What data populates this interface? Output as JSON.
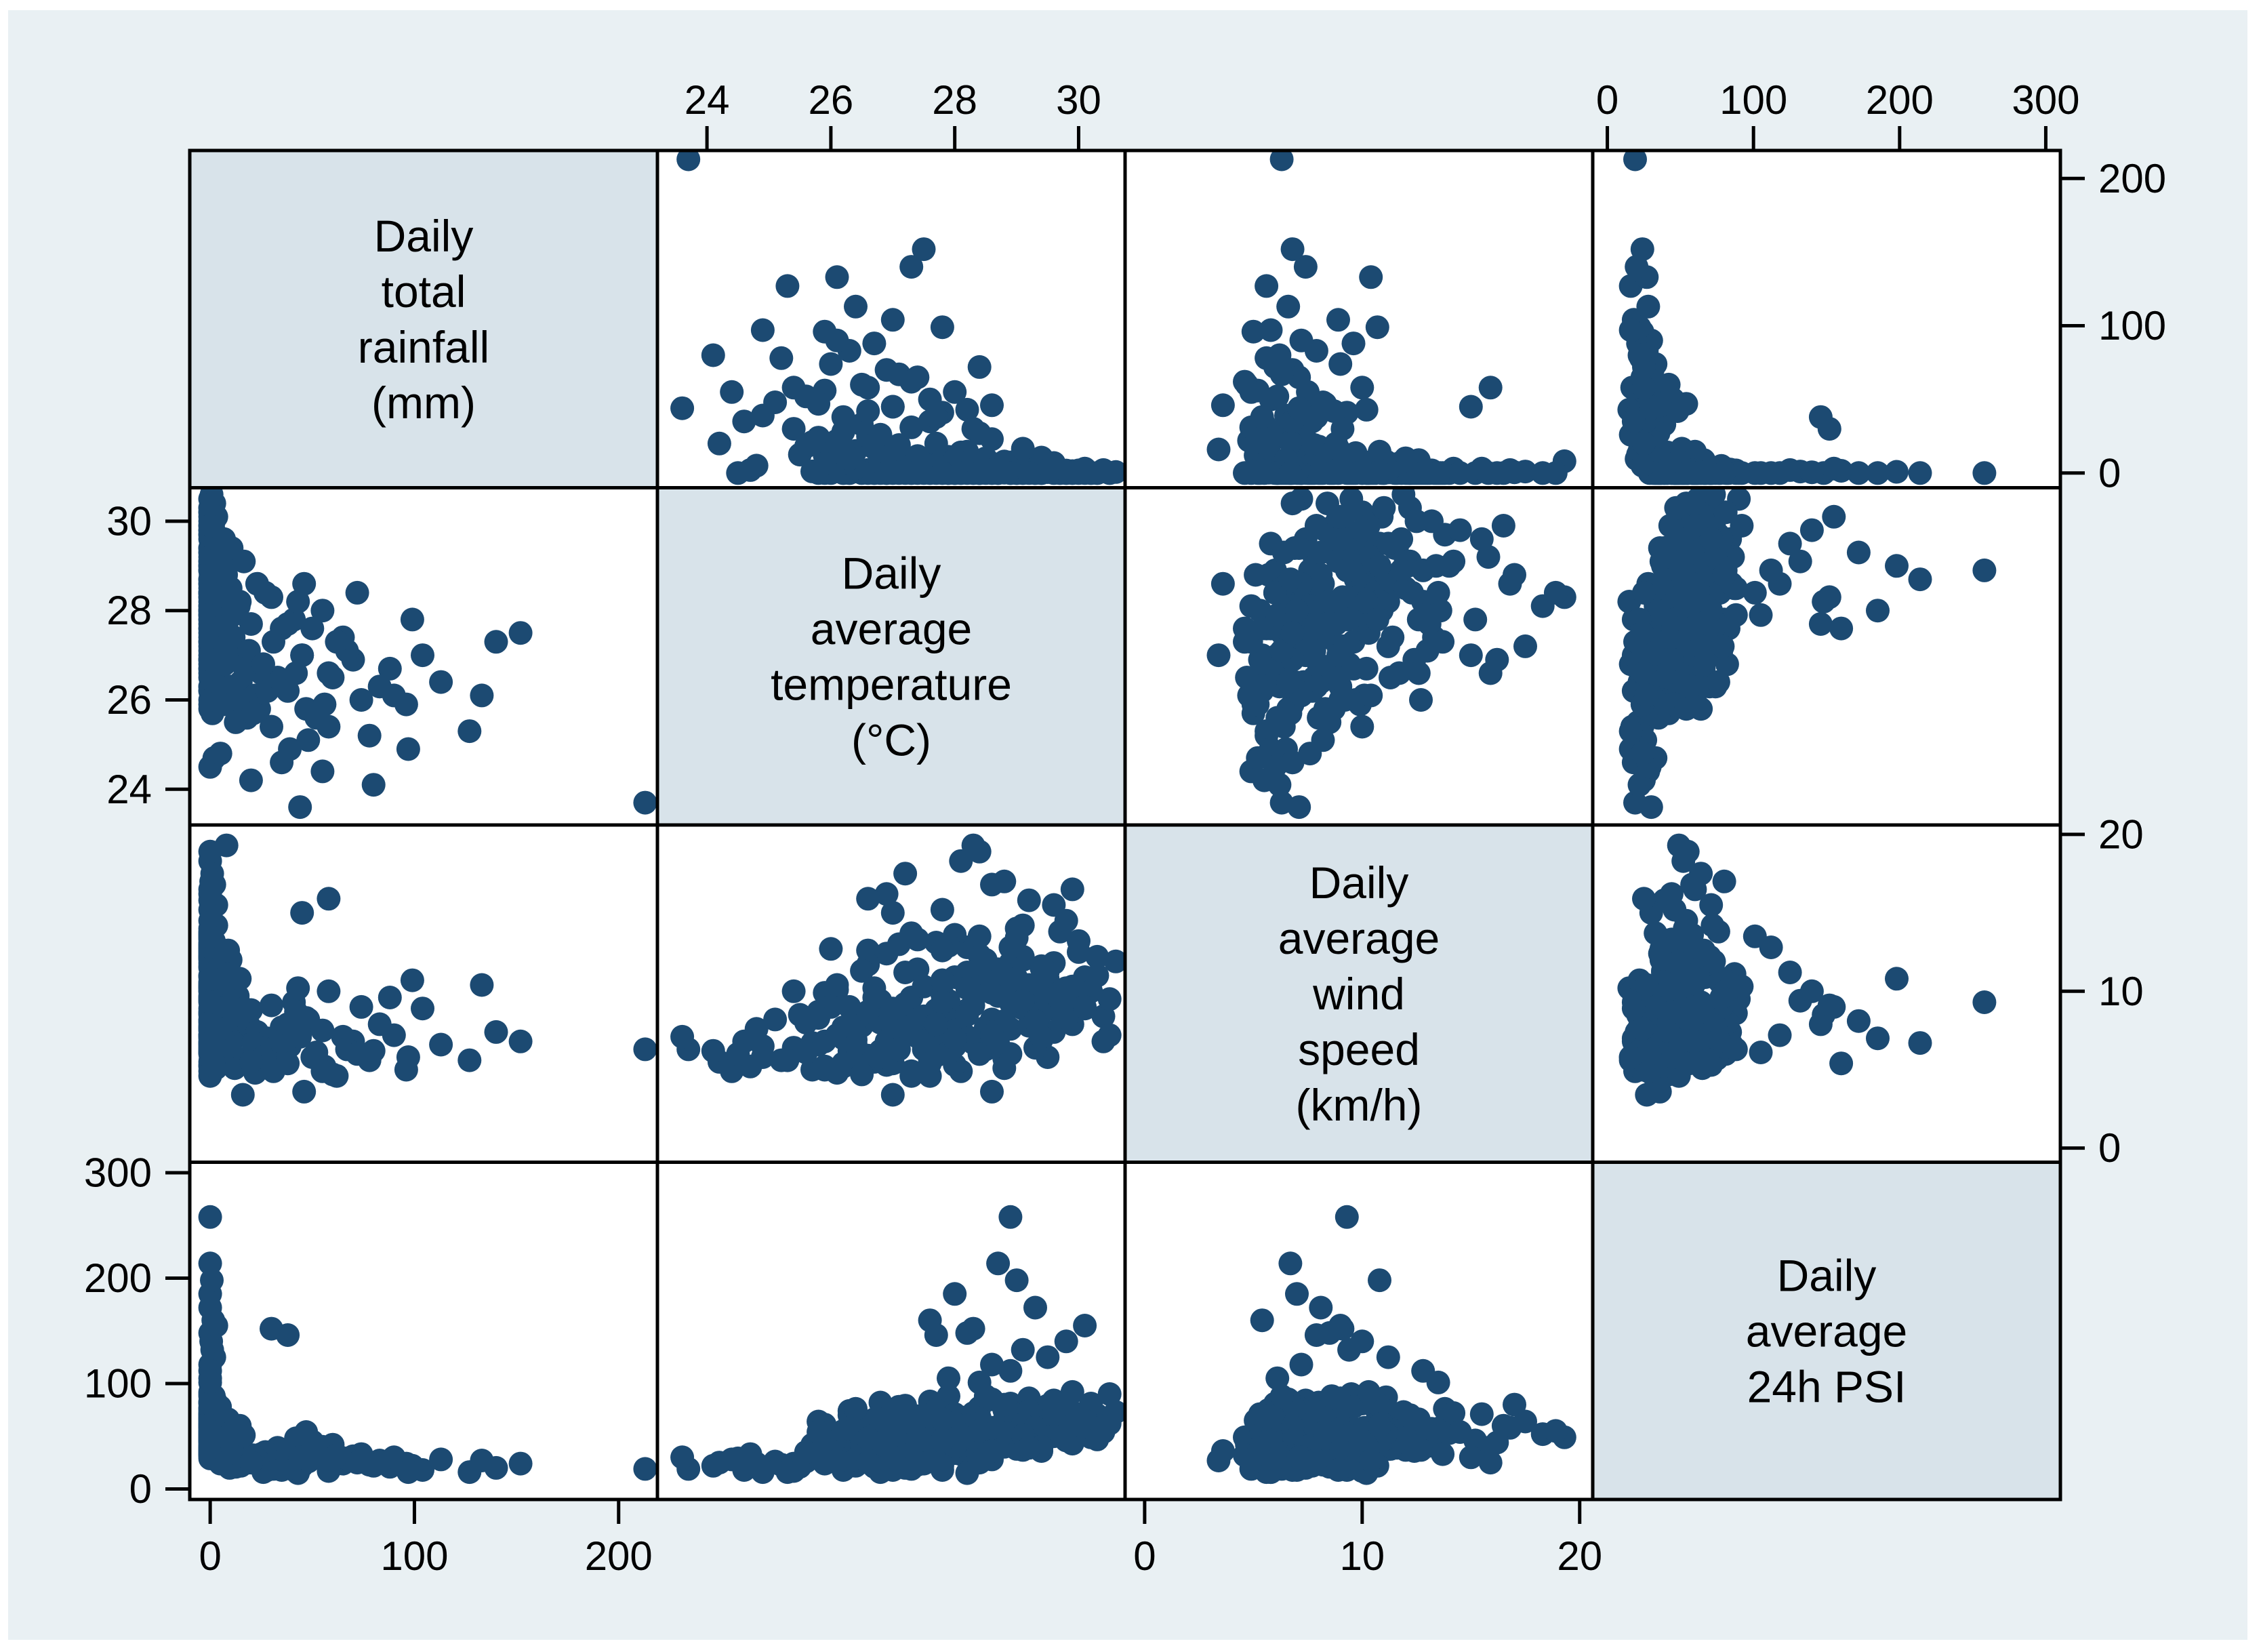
{
  "figure": {
    "background": "#ffffff",
    "canvas_color": "#e9f0f3",
    "diagonal_cell_color": "#d8e3ea",
    "panel_color": "#ffffff",
    "border_color": "#000000",
    "text_color": "#000000"
  },
  "chart_data": {
    "type": "scatter",
    "subtype": "scatter_matrix",
    "title": "",
    "legend": "none",
    "grid": false,
    "marker": {
      "shape": "circle",
      "color": "#1c4a72",
      "radius_px": 17.5
    },
    "axes": {
      "top": [
        1,
        3
      ],
      "bottom": [
        0,
        2
      ],
      "left": [
        1,
        3
      ],
      "right": [
        0,
        2
      ]
    },
    "variables": [
      {
        "key": "rainfall",
        "label": "Daily total rainfall (mm)",
        "label_lines": [
          "Daily",
          "total",
          "rainfall",
          "(mm)"
        ],
        "axis_range": [
          -10,
          219
        ],
        "ticks": [
          0,
          100,
          200
        ]
      },
      {
        "key": "temperature",
        "label": "Daily average temperature (°C)",
        "label_lines": [
          "Daily",
          "average",
          "temperature",
          "(°C)"
        ],
        "axis_range": [
          23.2,
          30.75
        ],
        "ticks": [
          24,
          26,
          28,
          30
        ]
      },
      {
        "key": "windspeed",
        "label": "Daily average wind speed (km/h)",
        "label_lines": [
          "Daily",
          "average",
          "wind",
          "speed",
          "(km/h)"
        ],
        "axis_range": [
          -0.9,
          20.6
        ],
        "ticks": [
          0,
          10,
          20
        ]
      },
      {
        "key": "psi",
        "label": "Daily average 24h PSI",
        "label_lines": [
          "Daily",
          "average",
          "24h PSI"
        ],
        "axis_range": [
          -10,
          310
        ],
        "ticks": [
          0,
          100,
          200,
          300
        ]
      }
    ],
    "records_format": [
      "rainfall_mm",
      "temperature_c",
      "windspeed_kmh",
      "psi_24h"
    ],
    "records": [
      [
        0,
        26.2,
        5.2,
        32
      ],
      [
        0,
        26.5,
        7.8,
        58
      ],
      [
        1.2,
        26.8,
        9.4,
        44
      ],
      [
        0,
        27,
        6.1,
        71
      ],
      [
        0.4,
        27.2,
        11.2,
        38
      ],
      [
        2,
        27.4,
        8.3,
        62
      ],
      [
        0,
        27.6,
        4.6,
        49
      ],
      [
        0.8,
        27.8,
        10.7,
        80
      ],
      [
        0,
        28,
        7.2,
        35
      ],
      [
        1.5,
        28.2,
        12.8,
        55
      ],
      [
        0,
        28.4,
        6.6,
        68
      ],
      [
        3,
        28.6,
        9.9,
        42
      ],
      [
        0.2,
        28.8,
        5.7,
        75
      ],
      [
        0,
        29,
        13.4,
        51
      ],
      [
        1,
        29.2,
        8.8,
        63
      ],
      [
        0,
        29.4,
        11.6,
        39
      ],
      [
        2.4,
        29.6,
        7.4,
        84
      ],
      [
        0,
        29.8,
        10.2,
        46
      ],
      [
        0.6,
        30,
        9.1,
        57
      ],
      [
        0,
        30.3,
        12.2,
        70
      ],
      [
        1,
        26.4,
        8.1,
        47
      ],
      [
        0,
        26.7,
        5.5,
        66
      ],
      [
        0,
        26.9,
        12.4,
        36
      ],
      [
        2.6,
        27.1,
        7,
        78
      ],
      [
        0,
        27.3,
        9.6,
        52
      ],
      [
        0.3,
        27.5,
        6.3,
        60
      ],
      [
        0,
        27.7,
        13.1,
        41
      ],
      [
        1.8,
        27.9,
        8.6,
        88
      ],
      [
        0,
        28.1,
        4.9,
        33
      ],
      [
        0,
        28.3,
        11,
        72
      ],
      [
        4,
        28.5,
        7.7,
        45
      ],
      [
        0,
        28.7,
        10.4,
        59
      ],
      [
        1.4,
        28.9,
        6,
        81
      ],
      [
        0,
        29.1,
        12,
        37
      ],
      [
        0.5,
        29.3,
        9.3,
        64
      ],
      [
        3.2,
        29.5,
        5.8,
        50
      ],
      [
        0,
        29.7,
        13.8,
        76
      ],
      [
        0.9,
        29.9,
        7.9,
        43
      ],
      [
        0,
        30.1,
        10.9,
        67
      ],
      [
        2,
        30.4,
        8.4,
        54
      ],
      [
        0,
        25.9,
        6.8,
        61
      ],
      [
        1.6,
        26.1,
        10.1,
        40
      ],
      [
        0,
        26.3,
        7.5,
        74
      ],
      [
        0,
        26.6,
        12.6,
        48
      ],
      [
        2.2,
        27,
        5.4,
        56
      ],
      [
        0,
        27.2,
        8.9,
        34
      ],
      [
        0.7,
        27.4,
        11.4,
        69
      ],
      [
        0,
        27.6,
        6.5,
        83
      ],
      [
        3.6,
        27.8,
        9.8,
        44
      ],
      [
        0,
        28,
        13.6,
        58
      ],
      [
        1.1,
        28.2,
        7.1,
        38
      ],
      [
        0,
        28.4,
        10.6,
        77
      ],
      [
        0,
        28.6,
        8.2,
        53
      ],
      [
        2.8,
        28.8,
        5.1,
        65
      ],
      [
        0,
        29,
        12.1,
        47
      ],
      [
        0.4,
        29.2,
        9,
        86
      ],
      [
        5,
        29.4,
        6.9,
        40
      ],
      [
        0,
        29.6,
        11.8,
        60
      ],
      [
        1.3,
        29.9,
        8.7,
        73
      ],
      [
        0,
        30.2,
        10,
        49
      ],
      [
        0.8,
        26,
        9.2,
        36
      ],
      [
        0,
        26.3,
        6.2,
        70
      ],
      [
        2.1,
        26.6,
        11.7,
        45
      ],
      [
        0,
        26.8,
        8,
        82
      ],
      [
        0,
        27.1,
        13,
        50
      ],
      [
        1.9,
        27.3,
        7.3,
        63
      ],
      [
        0,
        27.5,
        10.3,
        39
      ],
      [
        0.2,
        27.7,
        5.9,
        75
      ],
      [
        0,
        27.9,
        12.9,
        55
      ],
      [
        4.4,
        28.1,
        8.5,
        68
      ],
      [
        0,
        28.3,
        6.7,
        31
      ],
      [
        1.2,
        28.5,
        11.1,
        87
      ],
      [
        0,
        28.7,
        9.7,
        48
      ],
      [
        0,
        28.9,
        7.6,
        59
      ],
      [
        3,
        29.1,
        14.2,
        72
      ],
      [
        0,
        29.3,
        6.4,
        41
      ],
      [
        0.6,
        29.5,
        10.8,
        79
      ],
      [
        1.7,
        29.8,
        8.3,
        52
      ],
      [
        0,
        30,
        12.5,
        64
      ],
      [
        0,
        30.5,
        9.5,
        90
      ],
      [
        0,
        26.2,
        7.7,
        55
      ],
      [
        0.5,
        26.5,
        11.3,
        38
      ],
      [
        0,
        26.9,
        6.1,
        67
      ],
      [
        1,
        27.2,
        9.1,
        79
      ],
      [
        0,
        27.4,
        13.3,
        44
      ],
      [
        2.5,
        27.6,
        7,
        58
      ],
      [
        0,
        27.8,
        10.5,
        35
      ],
      [
        0,
        28,
        5.3,
        71
      ],
      [
        1.4,
        28.2,
        8.8,
        49
      ],
      [
        0,
        28.4,
        12.3,
        62
      ],
      [
        0.3,
        28.6,
        6.6,
        85
      ],
      [
        2.9,
        28.8,
        9.9,
        40
      ],
      [
        0,
        29,
        14,
        53
      ],
      [
        0.9,
        29.2,
        7.8,
        74
      ],
      [
        0,
        29.4,
        11.5,
        46
      ],
      [
        0,
        29.7,
        8.6,
        66
      ],
      [
        1.8,
        30,
        13.2,
        57
      ],
      [
        0,
        30.2,
        10,
        81
      ],
      [
        0,
        30.5,
        7.2,
        62
      ],
      [
        0.7,
        30.6,
        11.9,
        73
      ],
      [
        1.1,
        25.7,
        5,
        42
      ],
      [
        0,
        25.8,
        8.7,
        64
      ],
      [
        0,
        26,
        12.7,
        37
      ],
      [
        3.4,
        26.4,
        6.9,
        76
      ],
      [
        0,
        26.7,
        10.2,
        51
      ],
      [
        0.1,
        27,
        7.4,
        60
      ],
      [
        0,
        27.3,
        13.7,
        33
      ],
      [
        2.3,
        27.6,
        5.6,
        69
      ],
      [
        0,
        27.9,
        9.4,
        46
      ],
      [
        0.6,
        28.2,
        11.2,
        58
      ],
      [
        0,
        28.5,
        6.3,
        88
      ],
      [
        1.6,
        28.8,
        8.1,
        43
      ],
      [
        0,
        29.1,
        12.2,
        61
      ],
      [
        0,
        29.4,
        7.1,
        36
      ],
      [
        4.8,
        29.6,
        9.6,
        78
      ],
      [
        0,
        29.8,
        14.5,
        54
      ],
      [
        0.2,
        30.1,
        8.9,
        65
      ],
      [
        0,
        30.3,
        11,
        47
      ],
      [
        1,
        30.4,
        6.8,
        59
      ],
      [
        0,
        29.9,
        10.3,
        92
      ],
      [
        7,
        26.8,
        6.2,
        34
      ],
      [
        9,
        27.5,
        8.4,
        28
      ],
      [
        12,
        25.9,
        5.1,
        45
      ],
      [
        6.5,
        28.3,
        9.8,
        52
      ],
      [
        15,
        26.4,
        7.3,
        22
      ],
      [
        8,
        29,
        10.6,
        38
      ],
      [
        22,
        26.1,
        4.8,
        30
      ],
      [
        11,
        27.9,
        6.9,
        47
      ],
      [
        18,
        25.6,
        8,
        26
      ],
      [
        6,
        28.7,
        11.4,
        55
      ],
      [
        25,
        26.6,
        5.9,
        33
      ],
      [
        9.5,
        27.2,
        9.2,
        20
      ],
      [
        14,
        28.1,
        7.6,
        41
      ],
      [
        30,
        25.4,
        6.4,
        24
      ],
      [
        7.5,
        29.3,
        10.1,
        58
      ],
      [
        13,
        26.9,
        5.3,
        36
      ],
      [
        20,
        27.7,
        8.8,
        29
      ],
      [
        10,
        28.5,
        12,
        44
      ],
      [
        28,
        26.2,
        7,
        18
      ],
      [
        6.8,
        29.6,
        9.5,
        50
      ],
      [
        16,
        27,
        3.4,
        27
      ],
      [
        8.2,
        28,
        10.9,
        62
      ],
      [
        24,
        25.8,
        6.6,
        31
      ],
      [
        11.5,
        27.4,
        8.2,
        23
      ],
      [
        33,
        26.5,
        5.5,
        39
      ],
      [
        7.2,
        28.9,
        11.8,
        48
      ],
      [
        19,
        27.1,
        7.8,
        25
      ],
      [
        9.8,
        26.3,
        9,
        57
      ],
      [
        27,
        28.4,
        6,
        35
      ],
      [
        12.5,
        25.5,
        8.5,
        21
      ],
      [
        6.2,
        29.2,
        10.4,
        43
      ],
      [
        17,
        26.7,
        5.7,
        30
      ],
      [
        8.8,
        27.8,
        12.6,
        66
      ],
      [
        23,
        28.6,
        7.4,
        28
      ],
      [
        13.5,
        26,
        9.7,
        37
      ],
      [
        31,
        27.3,
        4.9,
        19
      ],
      [
        7.8,
        28.8,
        11.1,
        53
      ],
      [
        21,
        25.7,
        6.7,
        32
      ],
      [
        10.5,
        29.4,
        8.6,
        40
      ],
      [
        26,
        26.8,
        5.8,
        16
      ],
      [
        14.5,
        28.2,
        10.8,
        60
      ],
      [
        35,
        27.6,
        7.7,
        26
      ],
      [
        6.4,
        25.9,
        9.9,
        46
      ],
      [
        9.2,
        28,
        6.5,
        34
      ],
      [
        16.5,
        29.1,
        8.9,
        51
      ],
      [
        38,
        26.2,
        5.4,
        28
      ],
      [
        45,
        27,
        7.7,
        22
      ],
      [
        52,
        25.6,
        6.1,
        35
      ],
      [
        41,
        27.8,
        9.3,
        18
      ],
      [
        60,
        26.5,
        4.7,
        42
      ],
      [
        48,
        25.1,
        8.2,
        26
      ],
      [
        70,
        26.9,
        6.8,
        31
      ],
      [
        43,
        28.2,
        10.2,
        15
      ],
      [
        56,
        25.9,
        5.2,
        38
      ],
      [
        65,
        27.4,
        7.1,
        24
      ],
      [
        39,
        24.9,
        6.5,
        20
      ],
      [
        74,
        26,
        9,
        33
      ],
      [
        50,
        27.6,
        5.8,
        45
      ],
      [
        83,
        26.3,
        7.9,
        27
      ],
      [
        46,
        28.6,
        3.6,
        36
      ],
      [
        58,
        25.4,
        10,
        17
      ],
      [
        67,
        27.1,
        6.3,
        29
      ],
      [
        42,
        26.6,
        8.7,
        48
      ],
      [
        78,
        25.2,
        5.6,
        23
      ],
      [
        55,
        28,
        7.5,
        40
      ],
      [
        88,
        26.7,
        9.6,
        21
      ],
      [
        62,
        27.3,
        4.6,
        32
      ],
      [
        47,
        25.8,
        8.3,
        54
      ],
      [
        72,
        28.4,
        6,
        25
      ],
      [
        90,
        26.1,
        7.2,
        30
      ],
      [
        96,
        25.9,
        5,
        24
      ],
      [
        104,
        27,
        8.9,
        18
      ],
      [
        113,
        26.4,
        6.6,
        28
      ],
      [
        99,
        27.8,
        10.7,
        22
      ],
      [
        127,
        25.3,
        5.6,
        16
      ],
      [
        133,
        26.1,
        10.4,
        27
      ],
      [
        140,
        27.3,
        7.4,
        20
      ],
      [
        152,
        27.5,
        6.8,
        24
      ],
      [
        213,
        23.7,
        6.3,
        19
      ],
      [
        20,
        24.2,
        5.5,
        25
      ],
      [
        35,
        24.6,
        6.8,
        18
      ],
      [
        55,
        24.4,
        4.9,
        28
      ],
      [
        80,
        24.1,
        6.2,
        22
      ],
      [
        97,
        24.9,
        5.8,
        16
      ],
      [
        44,
        23.6,
        7.1,
        30
      ],
      [
        2,
        24.7,
        5.2,
        33
      ],
      [
        0,
        24.5,
        6,
        29
      ],
      [
        5,
        24.8,
        7.6,
        24
      ],
      [
        0,
        28.6,
        7.2,
        118
      ],
      [
        1,
        29.1,
        9.4,
        132
      ],
      [
        0,
        27.9,
        6.1,
        105
      ],
      [
        2,
        29.5,
        11.2,
        125
      ],
      [
        0,
        28.2,
        8.5,
        148
      ],
      [
        0.5,
        29.8,
        10,
        140
      ],
      [
        0,
        28.9,
        12.8,
        112
      ],
      [
        1.5,
        27.6,
        5.4,
        160
      ],
      [
        0,
        29.3,
        8.1,
        172
      ],
      [
        0,
        28.4,
        13.5,
        101
      ],
      [
        3,
        30.1,
        9,
        155
      ],
      [
        0,
        28,
        7,
        185
      ],
      [
        0.8,
        29,
        10.8,
        198
      ],
      [
        0,
        28.7,
        6.7,
        214
      ],
      [
        38,
        27.7,
        7.9,
        146
      ],
      [
        30,
        28.3,
        9.1,
        152
      ],
      [
        0,
        28.9,
        9.3,
        258
      ],
      [
        0,
        27.8,
        15.2,
        46
      ],
      [
        2,
        28.6,
        16.8,
        58
      ],
      [
        0,
        29.2,
        15.8,
        39
      ],
      [
        1,
        27.2,
        17.5,
        64
      ],
      [
        0,
        28.1,
        18.3,
        52
      ],
      [
        3,
        29.6,
        15.5,
        71
      ],
      [
        0,
        26.9,
        16.2,
        44
      ],
      [
        0.5,
        28.8,
        17,
        80
      ],
      [
        45,
        27,
        15,
        30
      ],
      [
        58,
        26.6,
        15.9,
        25
      ],
      [
        0,
        29.9,
        16.5,
        60
      ],
      [
        8,
        28.3,
        19.3,
        49
      ],
      [
        0,
        28.4,
        18.9,
        55
      ]
    ]
  }
}
